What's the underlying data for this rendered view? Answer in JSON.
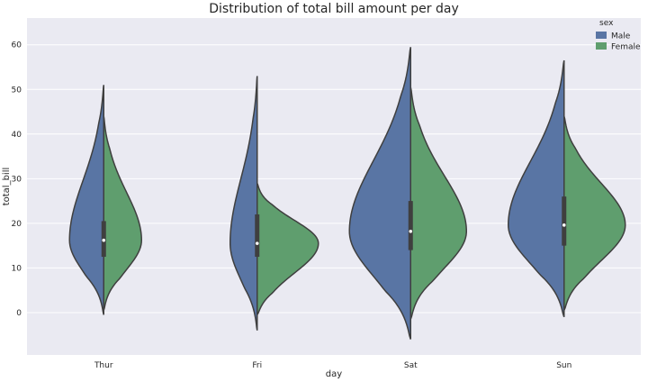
{
  "chart_data": {
    "type": "violin",
    "title": "Distribution of total bill amount per day",
    "xlabel": "day",
    "ylabel": "total_bill",
    "ylim": [
      -9.5,
      66
    ],
    "yticks": [
      0,
      10,
      20,
      30,
      40,
      50,
      60
    ],
    "grid": true,
    "split": true,
    "legend": {
      "title": "sex",
      "position": "top-right"
    },
    "categories": [
      "Thur",
      "Fri",
      "Sat",
      "Sun"
    ],
    "series": [
      {
        "name": "Male",
        "color": "#5975a4",
        "violins": [
          {
            "category": "Thur",
            "min": -0.5,
            "max": 51,
            "q1": 12.5,
            "median": 16.2,
            "q3": 20.5
          },
          {
            "category": "Fri",
            "min": -4,
            "max": 53,
            "q1": 12.5,
            "median": 15.5,
            "q3": 22
          },
          {
            "category": "Sat",
            "min": -6,
            "max": 59.5,
            "q1": 14,
            "median": 18.2,
            "q3": 25
          },
          {
            "category": "Sun",
            "min": -1,
            "max": 56.5,
            "q1": 15,
            "median": 19.6,
            "q3": 26
          }
        ]
      },
      {
        "name": "Female",
        "color": "#5f9e6e",
        "violins": [
          {
            "category": "Thur",
            "min": 0.5,
            "max": 44,
            "q1": 12.5,
            "median": 16.2,
            "q3": 20.5
          },
          {
            "category": "Fri",
            "min": -0.5,
            "max": 29,
            "q1": 12.5,
            "median": 15.5,
            "q3": 22
          },
          {
            "category": "Sat",
            "min": -1.5,
            "max": 50.5,
            "q1": 14,
            "median": 18.2,
            "q3": 25
          },
          {
            "category": "Sun",
            "min": 0.5,
            "max": 44,
            "q1": 15,
            "median": 19.6,
            "q3": 26
          }
        ]
      }
    ]
  }
}
